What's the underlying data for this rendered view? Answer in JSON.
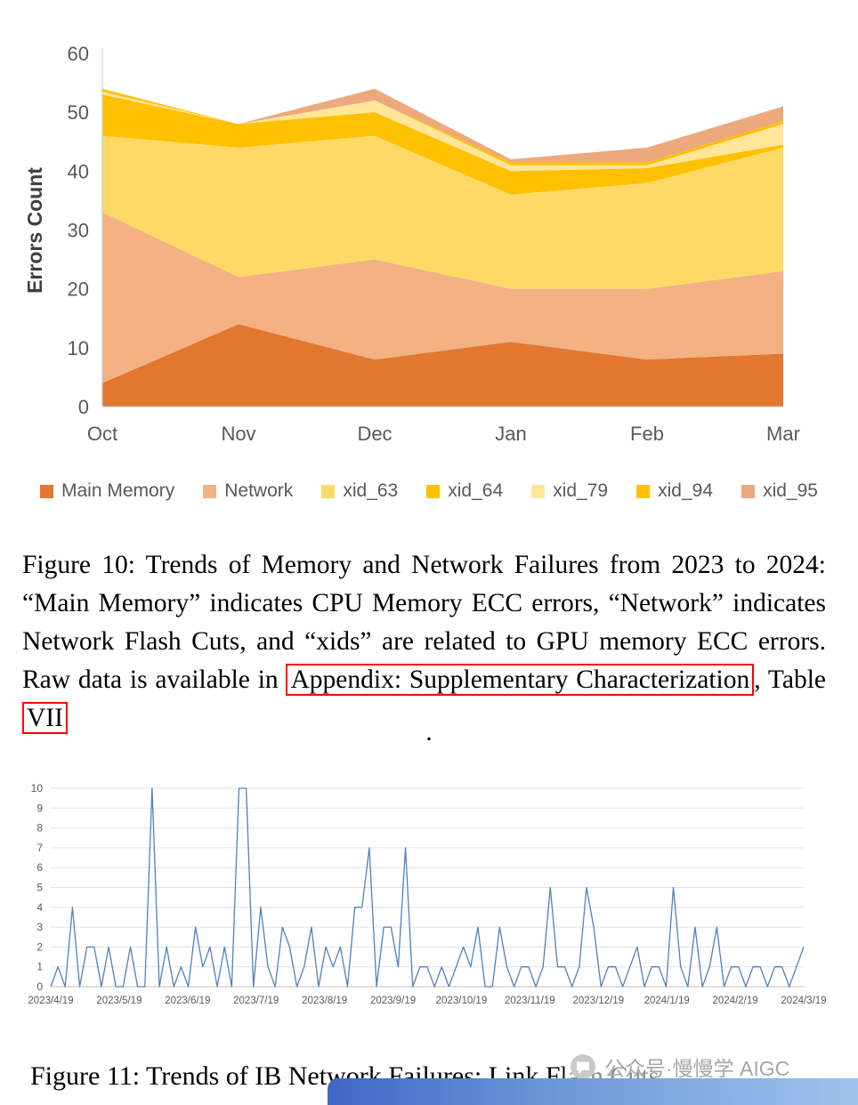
{
  "fig10": {
    "caption_part1": "Figure 10: Trends of Memory and Network Failures from 2023 to 2024: “Main Memory” indicates CPU Memory ECC errors, “Network” indicates Network Flash Cuts, and “xids” are related to GPU memory ECC errors. Raw data is available in ",
    "link1": "Appendix: Supplementary Characterization",
    "caption_part2": ", Table ",
    "link2": "VII",
    "trailing_period": ".",
    "link_box_color": "#ff0000"
  },
  "fig11": {
    "caption": "Figure 11: Trends of IB Network Failures: Link Flash Cuts"
  },
  "watermark": {
    "icon": "wechat-chat-bubble-icon",
    "text": "公众号·慢慢学 AIGC"
  },
  "chart_data": [
    {
      "type": "area",
      "stacked": true,
      "title": "",
      "categories": [
        "Oct",
        "Nov",
        "Dec",
        "Jan",
        "Feb",
        "Mar"
      ],
      "series": [
        {
          "name": "Main Memory",
          "color": "#E2772F",
          "values": [
            4,
            14,
            8,
            11,
            8,
            9
          ]
        },
        {
          "name": "Network",
          "color": "#F4B183",
          "values": [
            29,
            8,
            17,
            9,
            12,
            14
          ]
        },
        {
          "name": "xid_63",
          "color": "#FFD966",
          "values": [
            13,
            22,
            21,
            16,
            18,
            21
          ]
        },
        {
          "name": "xid_64",
          "color": "#FFC000",
          "values": [
            7,
            4,
            4,
            4,
            2.5,
            0.5
          ]
        },
        {
          "name": "xid_79",
          "color": "#FFE699",
          "values": [
            0.5,
            0,
            2,
            1,
            0.5,
            3.5
          ]
        },
        {
          "name": "xid_94",
          "color": "#FFC000",
          "values": [
            0.5,
            0,
            0,
            0.5,
            0.5,
            0.5
          ]
        },
        {
          "name": "xid_95",
          "color": "#EDA87B",
          "values": [
            0,
            0,
            2,
            0.5,
            2.5,
            2.5
          ]
        }
      ],
      "xlabel": "",
      "ylabel": "Errors Count",
      "ylim": [
        0,
        60
      ],
      "yticks": [
        0,
        10,
        20,
        30,
        40,
        50,
        60
      ],
      "grid": false,
      "legend_position": "bottom"
    },
    {
      "type": "line",
      "title": "",
      "line_color": "#4F81BD",
      "x_tick_labels": [
        "2023/4/19",
        "2023/5/19",
        "2023/6/19",
        "2023/7/19",
        "2023/8/19",
        "2023/9/19",
        "2023/10/19",
        "2023/11/19",
        "2023/12/19",
        "2024/1/19",
        "2024/2/19",
        "2024/3/19"
      ],
      "values": [
        0,
        1,
        0,
        4,
        0,
        2,
        2,
        0,
        2,
        0,
        0,
        2,
        0,
        0,
        10,
        0,
        2,
        0,
        1,
        0,
        3,
        1,
        2,
        0,
        2,
        0,
        10,
        10,
        0,
        4,
        1,
        0,
        3,
        2,
        0,
        1,
        3,
        0,
        2,
        1,
        2,
        0,
        4,
        4,
        7,
        0,
        3,
        3,
        1,
        7,
        0,
        1,
        1,
        0,
        1,
        0,
        1,
        2,
        1,
        3,
        0,
        0,
        3,
        1,
        0,
        1,
        1,
        0,
        1,
        5,
        1,
        1,
        0,
        1,
        5,
        3,
        0,
        1,
        1,
        0,
        1,
        2,
        0,
        1,
        1,
        0,
        5,
        1,
        0,
        3,
        0,
        1,
        3,
        0,
        1,
        1,
        0,
        1,
        1,
        0,
        1,
        1,
        0,
        1,
        2
      ],
      "ylim": [
        0,
        10
      ],
      "yticks": [
        0,
        1,
        2,
        3,
        4,
        5,
        6,
        7,
        8,
        9,
        10
      ],
      "grid": true,
      "legend_position": "none"
    }
  ]
}
